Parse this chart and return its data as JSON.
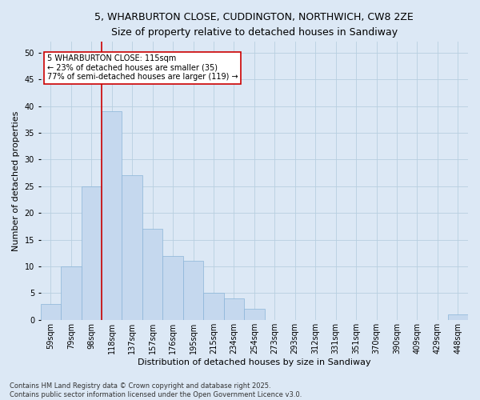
{
  "title_line1": "5, WHARBURTON CLOSE, CUDDINGTON, NORTHWICH, CW8 2ZE",
  "title_line2": "Size of property relative to detached houses in Sandiway",
  "xlabel": "Distribution of detached houses by size in Sandiway",
  "ylabel": "Number of detached properties",
  "categories": [
    "59sqm",
    "79sqm",
    "98sqm",
    "118sqm",
    "137sqm",
    "157sqm",
    "176sqm",
    "195sqm",
    "215sqm",
    "234sqm",
    "254sqm",
    "273sqm",
    "293sqm",
    "312sqm",
    "331sqm",
    "351sqm",
    "370sqm",
    "390sqm",
    "409sqm",
    "429sqm",
    "448sqm"
  ],
  "values": [
    3,
    10,
    25,
    39,
    27,
    17,
    12,
    11,
    5,
    4,
    2,
    0,
    0,
    0,
    0,
    0,
    0,
    0,
    0,
    0,
    1
  ],
  "bar_color": "#c5d8ee",
  "bar_edgecolor": "#8ab4d8",
  "grid_color": "#b8cfe0",
  "vline_color": "#cc0000",
  "vline_pos": 2.5,
  "annotation_text": "5 WHARBURTON CLOSE: 115sqm\n← 23% of detached houses are smaller (35)\n77% of semi-detached houses are larger (119) →",
  "annotation_box_edgecolor": "#cc0000",
  "annotation_box_facecolor": "#ffffff",
  "ylim": [
    0,
    52
  ],
  "yticks": [
    0,
    5,
    10,
    15,
    20,
    25,
    30,
    35,
    40,
    45,
    50
  ],
  "footer": "Contains HM Land Registry data © Crown copyright and database right 2025.\nContains public sector information licensed under the Open Government Licence v3.0.",
  "background_color": "#dce8f5",
  "plot_bg_color": "#dce8f5",
  "title_fontsize": 9,
  "subtitle_fontsize": 8.5,
  "axis_label_fontsize": 8,
  "tick_fontsize": 7,
  "annotation_fontsize": 7,
  "footer_fontsize": 6
}
